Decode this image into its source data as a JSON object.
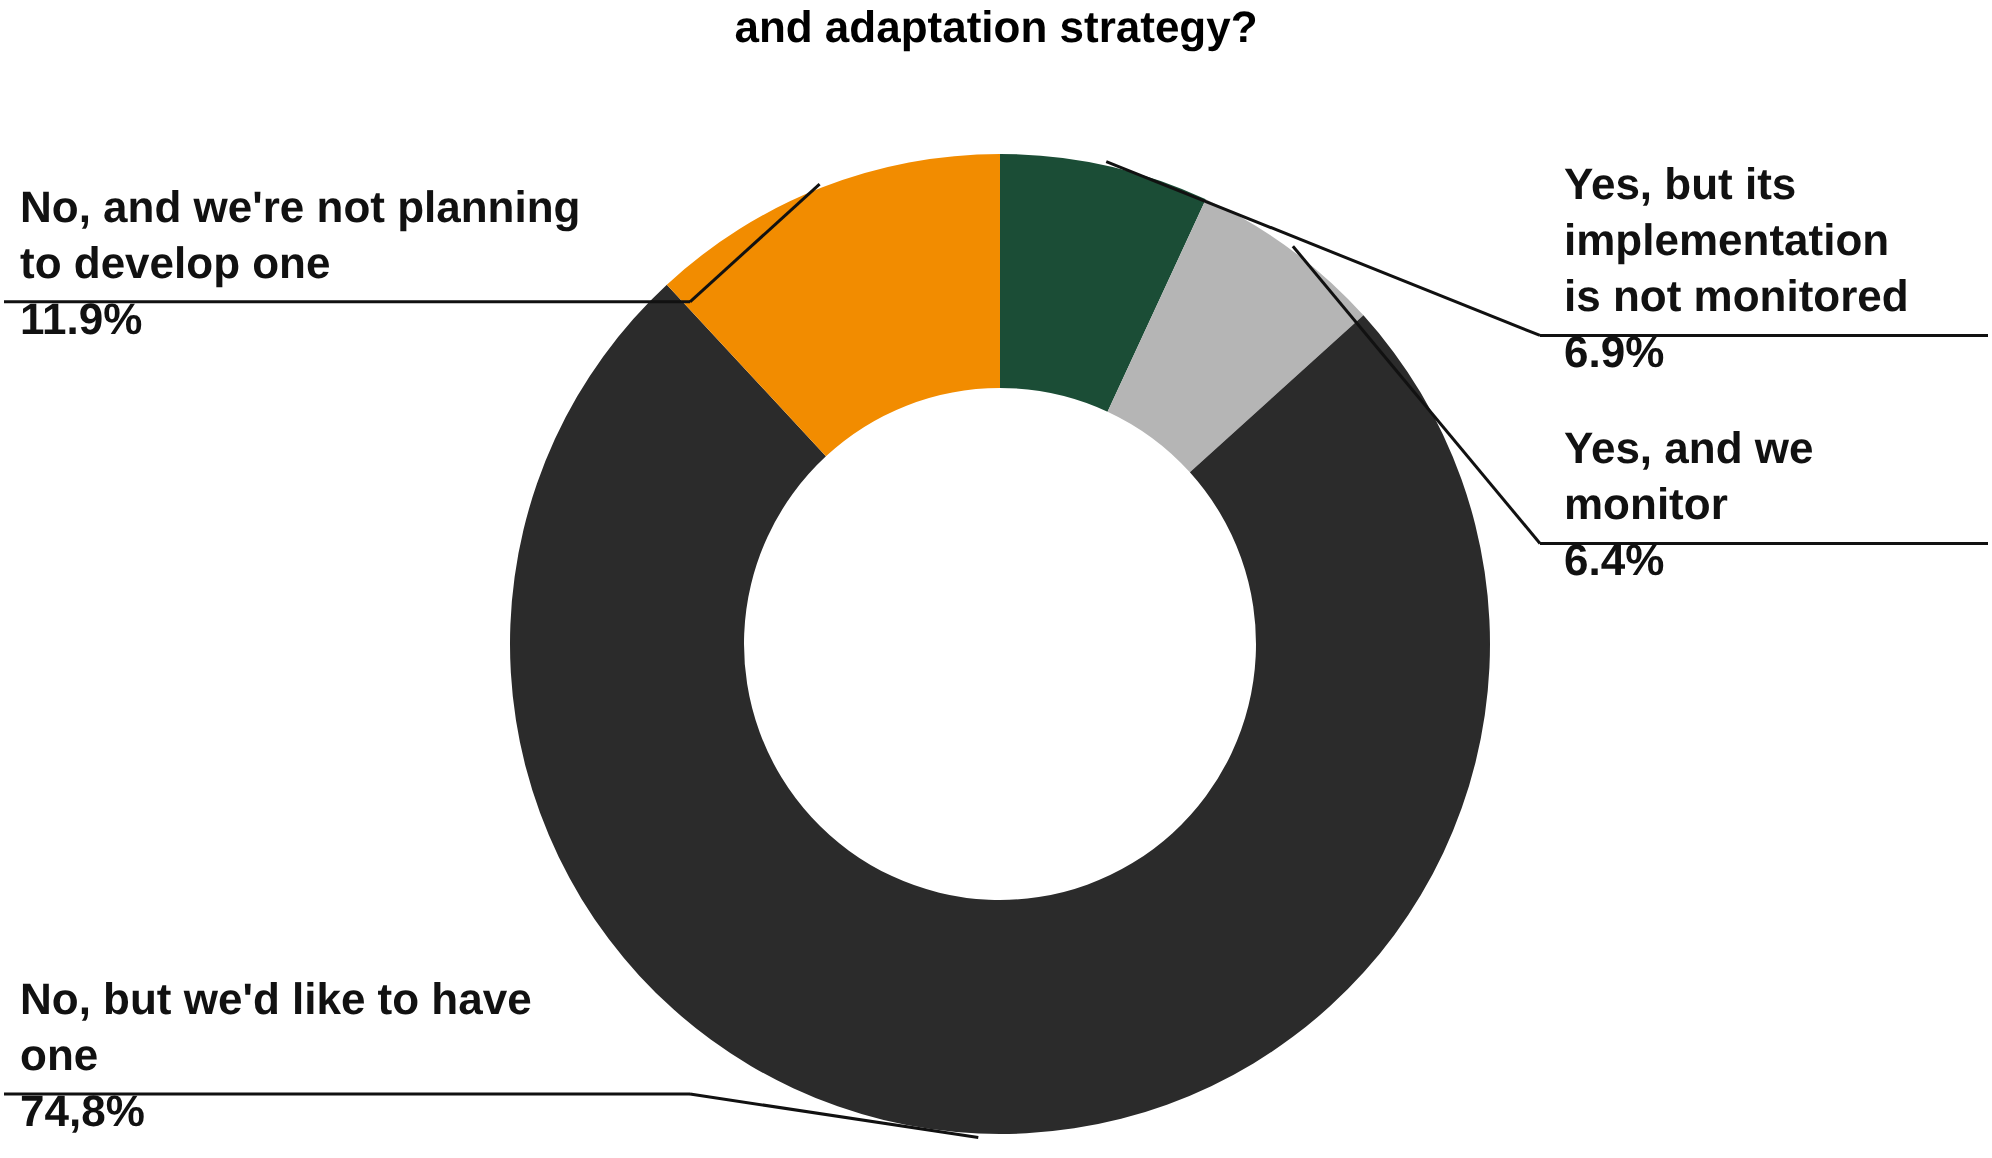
{
  "chart_data": {
    "type": "donut",
    "title": "and adaptation strategy?",
    "categories": [
      "Yes, but its implementation is not monitored",
      "Yes, and we monitor",
      "No, but we'd like to have one",
      "No, and we're not planning to develop one"
    ],
    "values": [
      6.9,
      6.4,
      74.8,
      11.9
    ],
    "value_labels": [
      "6.9%",
      "6.4%",
      "74,8%",
      "11.9%"
    ],
    "colors": [
      "#1b4d36",
      "#b5b5b5",
      "#2b2b2b",
      "#f28c00"
    ],
    "legend": false
  }
}
